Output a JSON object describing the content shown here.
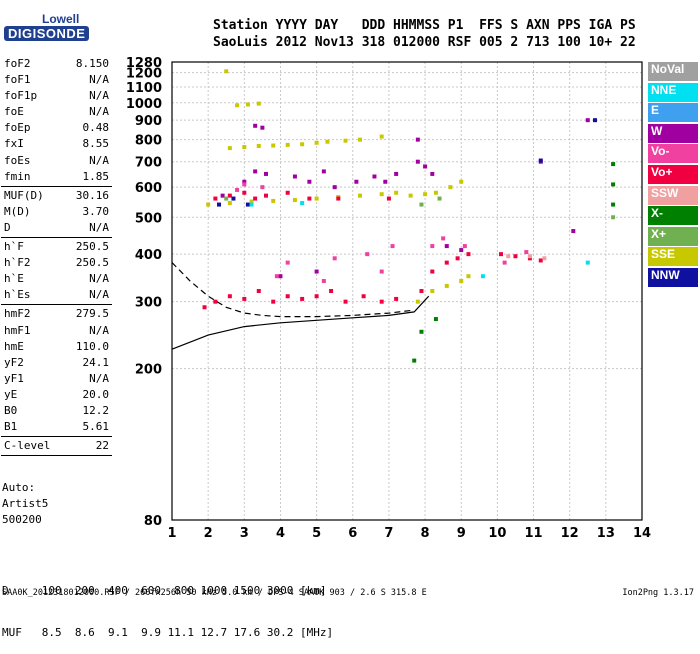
{
  "logo": {
    "top": "Lowell",
    "bottom": "DIGISONDE"
  },
  "header": {
    "line1": "Station YYYY DAY   DDD HHMMSS P1  FFS S AXN PPS IGA PS",
    "line2": "SaoLuis 2012 Nov13 318 012000 RSF 005 2 713 100 10+ 22"
  },
  "params": [
    {
      "name": "foF2",
      "value": "8.150",
      "sep": false
    },
    {
      "name": "foF1",
      "value": "N/A",
      "sep": false
    },
    {
      "name": "foF1p",
      "value": "N/A",
      "sep": false
    },
    {
      "name": "foE",
      "value": "N/A",
      "sep": false
    },
    {
      "name": "foEp",
      "value": "0.48",
      "sep": false
    },
    {
      "name": "fxI",
      "value": "8.55",
      "sep": false
    },
    {
      "name": "foEs",
      "value": "N/A",
      "sep": false
    },
    {
      "name": "fmin",
      "value": "1.85",
      "sep": true
    },
    {
      "name": "MUF(D)",
      "value": "30.16",
      "sep": false
    },
    {
      "name": "M(D)",
      "value": "3.70",
      "sep": false
    },
    {
      "name": "D",
      "value": "N/A",
      "sep": true
    },
    {
      "name": "h`F",
      "value": "250.5",
      "sep": false
    },
    {
      "name": "h`F2",
      "value": "250.5",
      "sep": false
    },
    {
      "name": "h`E",
      "value": "N/A",
      "sep": false
    },
    {
      "name": "h`Es",
      "value": "N/A",
      "sep": true
    },
    {
      "name": "hmF2",
      "value": "279.5",
      "sep": false
    },
    {
      "name": "hmF1",
      "value": "N/A",
      "sep": false
    },
    {
      "name": "hmE",
      "value": "110.0",
      "sep": false
    },
    {
      "name": "yF2",
      "value": "24.1",
      "sep": false
    },
    {
      "name": "yF1",
      "value": "N/A",
      "sep": false
    },
    {
      "name": "yE",
      "value": "20.0",
      "sep": false
    },
    {
      "name": "B0",
      "value": "12.2",
      "sep": false
    },
    {
      "name": "B1",
      "value": "5.61",
      "sep": true
    },
    {
      "name": "C-level",
      "value": "22",
      "sep": true
    }
  ],
  "auto": [
    "Auto:",
    "Artist5",
    "500200"
  ],
  "legend": [
    {
      "label": "NoVal",
      "color": "#a0a0a0"
    },
    {
      "label": "NNE",
      "color": "#00e0f0"
    },
    {
      "label": "E",
      "color": "#40a0f0"
    },
    {
      "label": "W",
      "color": "#a000a0"
    },
    {
      "label": "Vo-",
      "color": "#f040a0"
    },
    {
      "label": "Vo+",
      "color": "#f00040"
    },
    {
      "label": "SSW",
      "color": "#f0a0a0"
    },
    {
      "label": "X-",
      "color": "#008000"
    },
    {
      "label": "X+",
      "color": "#70b050"
    },
    {
      "label": "SSE",
      "color": "#c8c800"
    },
    {
      "label": "NNW",
      "color": "#1010a0"
    }
  ],
  "bottom": {
    "d_line": "D     100  200  400  600  800 1000 1500 3000 [km]",
    "muf_line": "MUF   8.5  8.6  9.1  9.9 11.1 12.7 17.6 30.2 [MHz]"
  },
  "footer": "SAA0K_2012318012000.RSF / 260fx256h 50 kHz 5.0 km / DPS-4 SAA0K 903 / 2.6 S 315.8 E",
  "version": "Ion2Png 1.3.17",
  "chart_data": {
    "type": "scatter",
    "xlim": [
      1,
      14
    ],
    "ylim": [
      80,
      1280
    ],
    "x_ticks": [
      1,
      2,
      3,
      4,
      5,
      6,
      7,
      8,
      9,
      10,
      11,
      12,
      13,
      14
    ],
    "y_ticks": [
      80,
      200,
      300,
      400,
      500,
      600,
      700,
      800,
      900,
      1000,
      1100,
      1200,
      1280
    ],
    "y_scale": "log",
    "grid": true,
    "legend_placement": "right",
    "traces": [
      {
        "name": "SSE",
        "color": "#c8c800",
        "points": [
          [
            2.5,
            1210
          ],
          [
            2.8,
            985
          ],
          [
            3.1,
            990
          ],
          [
            3.4,
            995
          ],
          [
            2.6,
            760
          ],
          [
            3.0,
            765
          ],
          [
            3.4,
            770
          ],
          [
            3.8,
            772
          ],
          [
            4.2,
            775
          ],
          [
            4.6,
            778
          ],
          [
            5.0,
            785
          ],
          [
            5.3,
            790
          ],
          [
            5.8,
            795
          ],
          [
            6.2,
            800
          ],
          [
            6.8,
            815
          ],
          [
            2.0,
            540
          ],
          [
            2.6,
            545
          ],
          [
            3.2,
            550
          ],
          [
            3.8,
            552
          ],
          [
            4.4,
            555
          ],
          [
            5.0,
            560
          ],
          [
            5.6,
            565
          ],
          [
            6.2,
            570
          ],
          [
            6.8,
            575
          ],
          [
            7.2,
            580
          ],
          [
            7.6,
            570
          ],
          [
            8.0,
            575
          ],
          [
            8.3,
            580
          ],
          [
            8.7,
            600
          ],
          [
            9.0,
            620
          ],
          [
            8.2,
            320
          ],
          [
            8.6,
            330
          ],
          [
            9.0,
            340
          ],
          [
            9.2,
            350
          ],
          [
            7.8,
            300
          ]
        ]
      },
      {
        "name": "Vo+",
        "color": "#f00040",
        "points": [
          [
            1.9,
            290
          ],
          [
            2.2,
            300
          ],
          [
            2.6,
            310
          ],
          [
            3.0,
            305
          ],
          [
            3.4,
            320
          ],
          [
            3.8,
            300
          ],
          [
            4.2,
            310
          ],
          [
            4.6,
            305
          ],
          [
            5.0,
            310
          ],
          [
            5.4,
            320
          ],
          [
            5.8,
            300
          ],
          [
            6.3,
            310
          ],
          [
            6.8,
            300
          ],
          [
            7.2,
            305
          ],
          [
            7.9,
            320
          ],
          [
            8.2,
            360
          ],
          [
            8.6,
            380
          ],
          [
            8.9,
            390
          ],
          [
            9.2,
            400
          ],
          [
            10.1,
            400
          ],
          [
            10.5,
            395
          ],
          [
            10.9,
            390
          ],
          [
            11.2,
            385
          ],
          [
            2.2,
            560
          ],
          [
            2.6,
            570
          ],
          [
            3.0,
            580
          ],
          [
            3.3,
            560
          ],
          [
            3.6,
            570
          ],
          [
            4.2,
            580
          ],
          [
            4.8,
            560
          ],
          [
            5.6,
            560
          ],
          [
            7.0,
            560
          ]
        ]
      },
      {
        "name": "W",
        "color": "#a000a0",
        "points": [
          [
            3.3,
            870
          ],
          [
            3.5,
            860
          ],
          [
            3.3,
            660
          ],
          [
            3.6,
            650
          ],
          [
            4.4,
            640
          ],
          [
            4.8,
            620
          ],
          [
            5.2,
            660
          ],
          [
            5.5,
            600
          ],
          [
            6.1,
            620
          ],
          [
            6.6,
            640
          ],
          [
            6.9,
            620
          ],
          [
            7.2,
            650
          ],
          [
            7.8,
            700
          ],
          [
            8.0,
            680
          ],
          [
            8.2,
            650
          ],
          [
            8.6,
            420
          ],
          [
            9.0,
            410
          ],
          [
            7.8,
            800
          ],
          [
            3.0,
            620
          ],
          [
            2.4,
            570
          ],
          [
            11.2,
            700
          ],
          [
            12.1,
            460
          ],
          [
            12.5,
            900
          ],
          [
            4.0,
            350
          ],
          [
            5.0,
            360
          ]
        ]
      },
      {
        "name": "Vo-",
        "color": "#f040a0",
        "points": [
          [
            3.0,
            610
          ],
          [
            3.5,
            600
          ],
          [
            4.2,
            380
          ],
          [
            5.5,
            390
          ],
          [
            6.4,
            400
          ],
          [
            7.1,
            420
          ],
          [
            8.2,
            420
          ],
          [
            8.5,
            440
          ],
          [
            9.1,
            420
          ],
          [
            10.2,
            380
          ],
          [
            10.8,
            405
          ],
          [
            2.8,
            590
          ],
          [
            3.9,
            350
          ],
          [
            5.2,
            340
          ],
          [
            6.8,
            360
          ]
        ]
      },
      {
        "name": "X-",
        "color": "#008000",
        "points": [
          [
            7.7,
            210
          ],
          [
            7.9,
            250
          ],
          [
            8.3,
            270
          ],
          [
            13.2,
            690
          ],
          [
            13.2,
            610
          ],
          [
            13.2,
            540
          ]
        ]
      },
      {
        "name": "NNW",
        "color": "#1010a0",
        "points": [
          [
            2.3,
            540
          ],
          [
            2.7,
            560
          ],
          [
            3.1,
            540
          ],
          [
            12.7,
            900
          ],
          [
            11.2,
            705
          ]
        ]
      },
      {
        "name": "NNE",
        "color": "#00e0f0",
        "points": [
          [
            3.2,
            540
          ],
          [
            4.6,
            545
          ],
          [
            12.5,
            380
          ],
          [
            9.6,
            350
          ]
        ]
      },
      {
        "name": "X+",
        "color": "#70b050",
        "points": [
          [
            2.5,
            560
          ],
          [
            7.9,
            540
          ],
          [
            8.4,
            560
          ],
          [
            13.2,
            500
          ]
        ]
      },
      {
        "name": "SSW",
        "color": "#f0a0a0",
        "points": [
          [
            10.3,
            395
          ],
          [
            10.9,
            395
          ],
          [
            11.3,
            390
          ]
        ]
      }
    ],
    "lines": [
      {
        "style": "solid",
        "points": [
          [
            1,
            225
          ],
          [
            2,
            245
          ],
          [
            3,
            258
          ],
          [
            4,
            264
          ],
          [
            5,
            268
          ],
          [
            6,
            272
          ],
          [
            7,
            276
          ],
          [
            7.7,
            282
          ],
          [
            8.1,
            310
          ]
        ]
      },
      {
        "style": "dashed",
        "points": [
          [
            1,
            380
          ],
          [
            1.5,
            340
          ],
          [
            2,
            310
          ],
          [
            2.5,
            290
          ],
          [
            3,
            280
          ],
          [
            3.5,
            276
          ],
          [
            4,
            274
          ],
          [
            5,
            274
          ],
          [
            6,
            276
          ],
          [
            7,
            280
          ],
          [
            7.7,
            285
          ]
        ]
      }
    ]
  }
}
